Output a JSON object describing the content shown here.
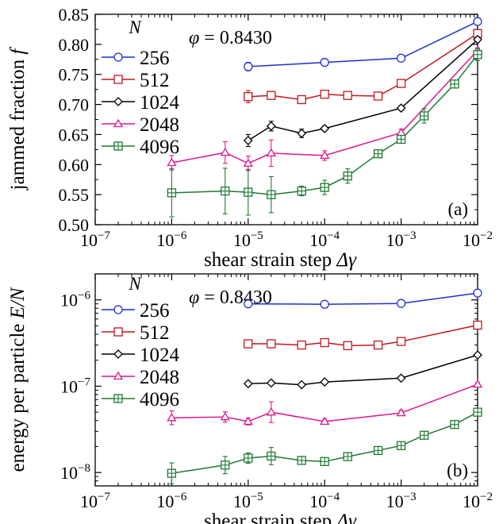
{
  "chart_data": [
    {
      "type": "line",
      "panel_label": "(a)",
      "annotation": "φ = 0.8430",
      "legend_title": "N",
      "xlabel": "shear strain step  Δγ",
      "ylabel": "jammed fraction f",
      "xscale": "log",
      "xlim": [
        1e-07,
        0.01
      ],
      "ylim": [
        0.5,
        0.85
      ],
      "x_ticks": [
        "10^-7",
        "10^-6",
        "10^-5",
        "10^-4",
        "10^-3",
        "10^-2"
      ],
      "y_ticks": [
        "0.50",
        "0.55",
        "0.60",
        "0.65",
        "0.70",
        "0.75",
        "0.80",
        "0.85"
      ],
      "legend_placement": "top-left",
      "series": [
        {
          "name": "256",
          "color": "#1f2fd0",
          "marker": "circle",
          "x": [
            1e-05,
            0.0001,
            0.001,
            0.01
          ],
          "y": [
            0.763,
            0.77,
            0.777,
            0.838
          ],
          "err": [
            0.007,
            0.004,
            0.004,
            0.003
          ]
        },
        {
          "name": "512",
          "color": "#c0181f",
          "marker": "square",
          "x": [
            1e-05,
            2e-05,
            5e-05,
            0.0001,
            0.0002,
            0.0005,
            0.001,
            0.01
          ],
          "y": [
            0.713,
            0.715,
            0.708,
            0.717,
            0.715,
            0.714,
            0.735,
            0.818
          ],
          "err": [
            0.01,
            0.006,
            0.005,
            0.006,
            0.005,
            0.006,
            0.004,
            0.003
          ]
        },
        {
          "name": "1024",
          "color": "#000000",
          "marker": "diamond",
          "x": [
            1e-05,
            2e-05,
            5e-05,
            0.0001,
            0.001,
            0.01
          ],
          "y": [
            0.64,
            0.664,
            0.652,
            0.66,
            0.694,
            0.808
          ],
          "err": [
            0.01,
            0.008,
            0.007,
            0.004,
            0.004,
            0.004
          ]
        },
        {
          "name": "2048",
          "color": "#e0188a",
          "marker": "triangle",
          "x": [
            1e-06,
            5e-06,
            1e-05,
            2e-05,
            0.0001,
            0.001,
            0.01
          ],
          "y": [
            0.603,
            0.62,
            0.602,
            0.619,
            0.615,
            0.653,
            0.79
          ],
          "err": [
            0.012,
            0.018,
            0.012,
            0.022,
            0.008,
            0.006,
            0.004
          ]
        },
        {
          "name": "4096",
          "color": "#1e7a32",
          "marker": "squareplus",
          "x": [
            1e-06,
            5e-06,
            1e-05,
            2e-05,
            5e-05,
            0.0001,
            0.0002,
            0.0005,
            0.001,
            0.002,
            0.005,
            0.01
          ],
          "y": [
            0.553,
            0.556,
            0.554,
            0.55,
            0.556,
            0.562,
            0.581,
            0.618,
            0.642,
            0.681,
            0.734,
            0.783
          ],
          "err": [
            0.04,
            0.038,
            0.038,
            0.03,
            0.008,
            0.012,
            0.012,
            0.005,
            0.006,
            0.012,
            0.006,
            0.01
          ]
        }
      ]
    },
    {
      "type": "line",
      "panel_label": "(b)",
      "annotation": "φ = 0.8430",
      "legend_title": "N",
      "xlabel": "shear strain step  Δγ",
      "ylabel": "energy per particle E/N",
      "xscale": "log",
      "yscale": "log",
      "xlim": [
        1e-07,
        0.01
      ],
      "ylim": [
        7e-09,
        2e-06
      ],
      "x_ticks": [
        "10^-7",
        "10^-6",
        "10^-5",
        "10^-4",
        "10^-3",
        "10^-2"
      ],
      "y_ticks": [
        "10^-8",
        "10^-7",
        "10^-6"
      ],
      "legend_placement": "top-left",
      "series": [
        {
          "name": "256",
          "color": "#1f2fd0",
          "marker": "circle",
          "x": [
            1e-05,
            0.0001,
            0.001,
            0.01
          ],
          "y": [
            9e-07,
            8.9e-07,
            9.1e-07,
            1.2e-06
          ],
          "err": [
            0,
            0,
            0,
            0
          ]
        },
        {
          "name": "512",
          "color": "#c0181f",
          "marker": "square",
          "x": [
            1e-05,
            2e-05,
            5e-05,
            0.0001,
            0.0002,
            0.0005,
            0.001,
            0.01
          ],
          "y": [
            3.1e-07,
            3.1e-07,
            3e-07,
            3.2e-07,
            2.95e-07,
            3e-07,
            3.3e-07,
            5.1e-07
          ],
          "err": [
            0,
            0,
            0,
            0,
            0,
            0,
            0,
            0
          ]
        },
        {
          "name": "1024",
          "color": "#000000",
          "marker": "diamond",
          "x": [
            1e-05,
            2e-05,
            5e-05,
            0.0001,
            0.001,
            0.01
          ],
          "y": [
            1.07e-07,
            1.09e-07,
            1.04e-07,
            1.12e-07,
            1.24e-07,
            2.3e-07
          ],
          "err": [
            0,
            0,
            0,
            0,
            0,
            0
          ]
        },
        {
          "name": "2048",
          "color": "#e0188a",
          "marker": "triangle",
          "x": [
            1e-06,
            5e-06,
            1e-05,
            2e-05,
            0.0001,
            0.001,
            0.01
          ],
          "y": [
            4.3e-08,
            4.4e-08,
            3.9e-08,
            5e-08,
            3.9e-08,
            4.9e-08,
            1.05e-07
          ],
          "err": [
            0.08,
            0.06,
            0.04,
            0.12,
            0.03,
            0.03,
            0.02
          ]
        },
        {
          "name": "4096",
          "color": "#1e7a32",
          "marker": "squareplus",
          "x": [
            1e-06,
            5e-06,
            1e-05,
            2e-05,
            5e-05,
            0.0001,
            0.0002,
            0.0005,
            0.001,
            0.002,
            0.005,
            0.01
          ],
          "y": [
            9.8e-09,
            1.22e-08,
            1.47e-08,
            1.55e-08,
            1.38e-08,
            1.34e-08,
            1.53e-08,
            1.8e-08,
            2.05e-08,
            2.7e-08,
            3.6e-08,
            5e-08
          ],
          "err": [
            0.12,
            0.1,
            0.06,
            0.1,
            0.04,
            0.04,
            0.04,
            0.04,
            0.04,
            0.04,
            0.04,
            0.04
          ]
        }
      ]
    }
  ]
}
